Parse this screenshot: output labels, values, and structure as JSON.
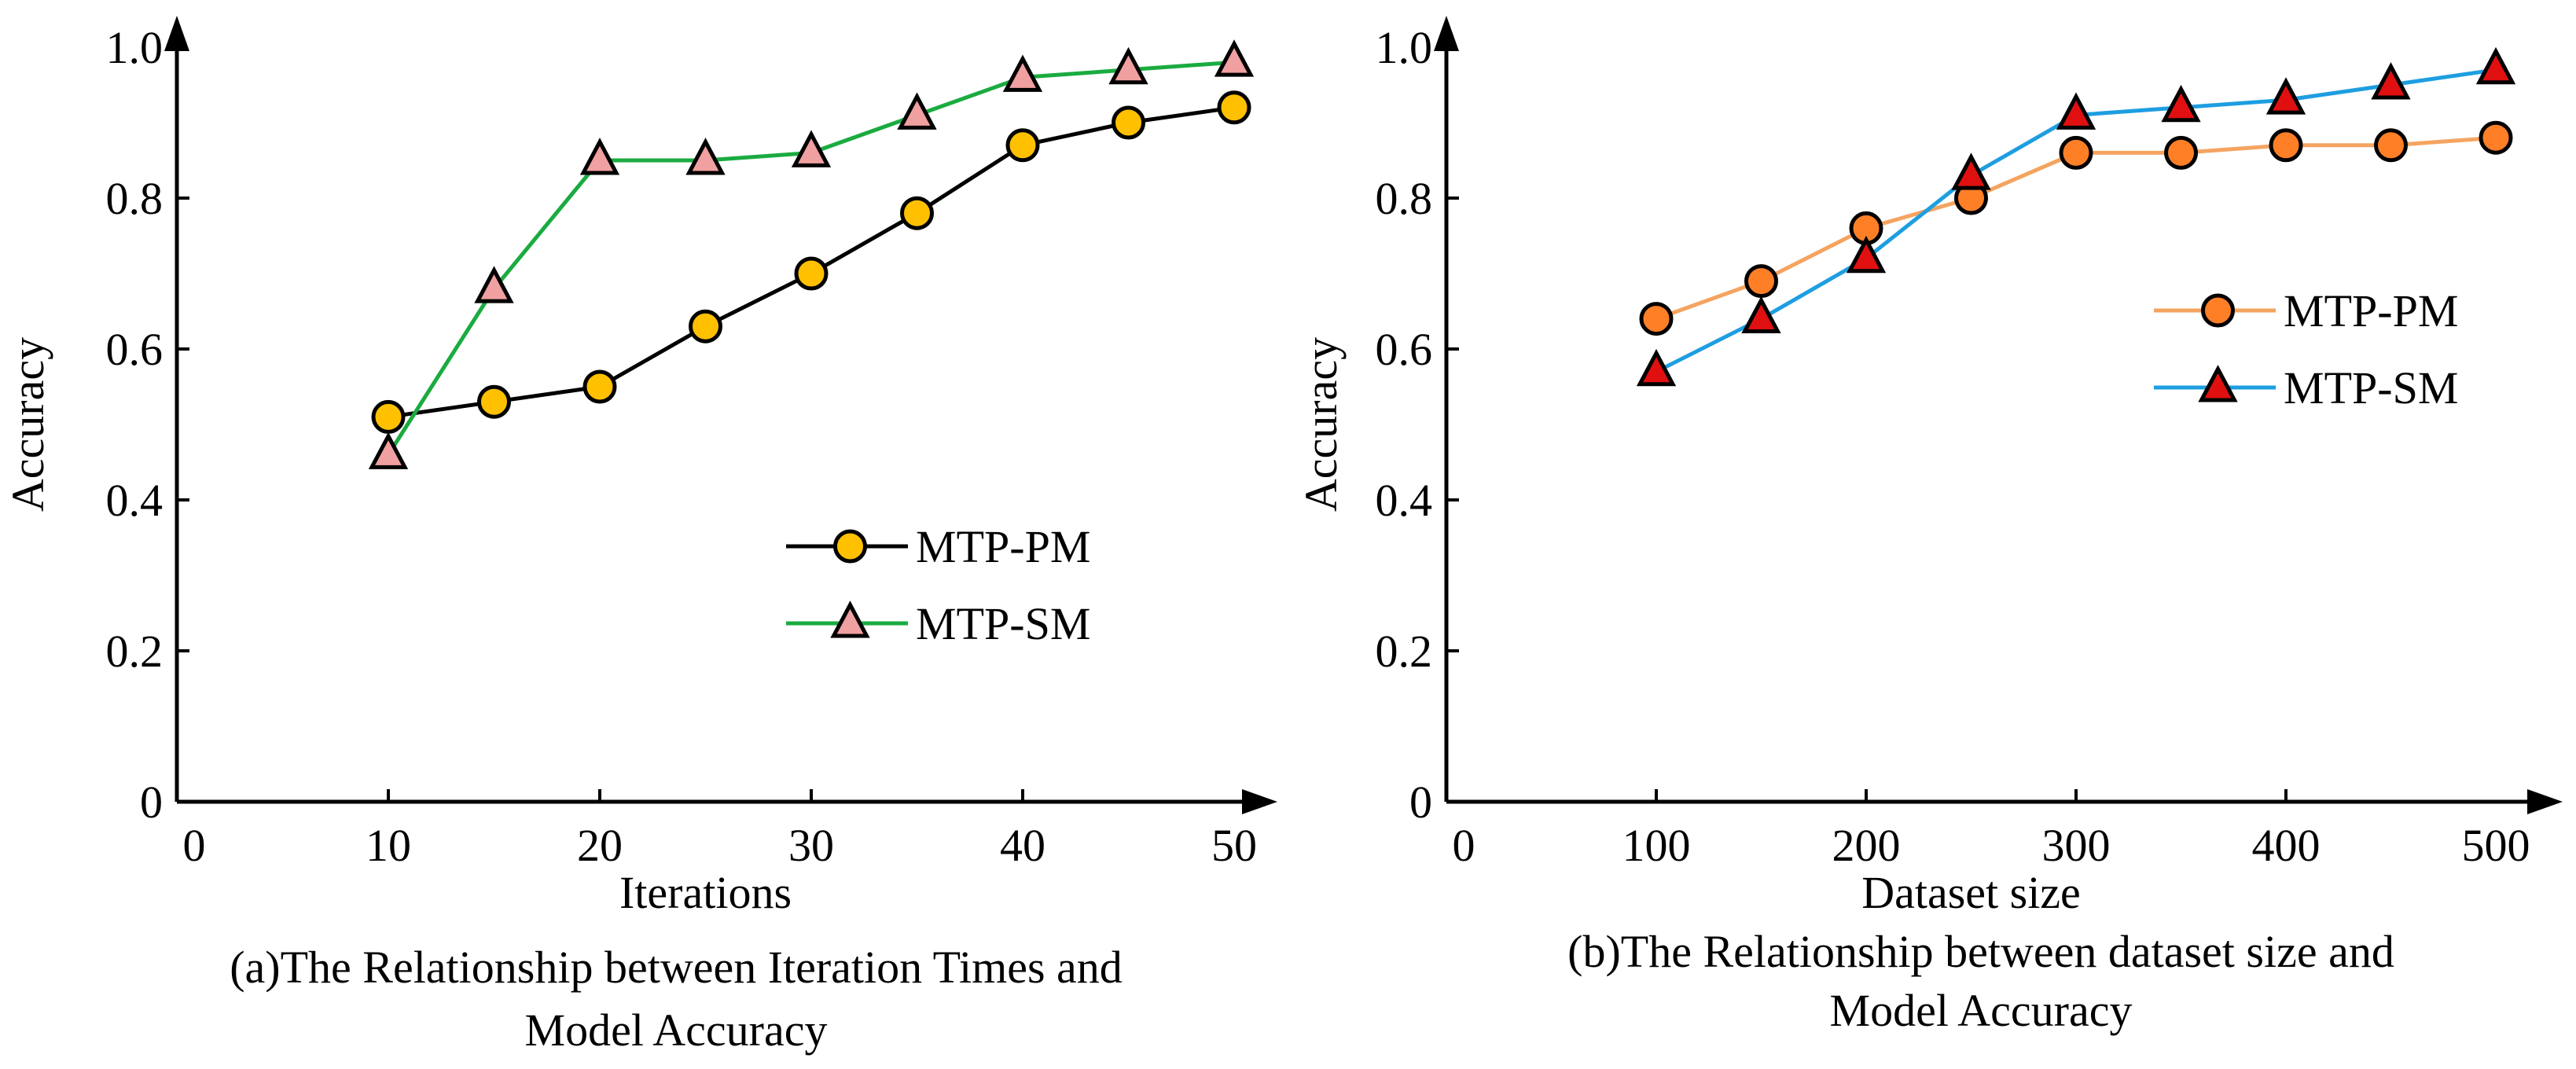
{
  "chart_data": [
    {
      "type": "line",
      "xlabel": "Iterations",
      "ylabel": "Accuracy",
      "xlim": [
        0,
        50
      ],
      "ylim": [
        0,
        1.0
      ],
      "xticks": [
        "0",
        "10",
        "20",
        "30",
        "40",
        "50"
      ],
      "yticks": [
        "0",
        "0.2",
        "0.4",
        "0.6",
        "0.8",
        "1.0"
      ],
      "caption_lines": [
        "(a)The Relationship between Iteration Times and",
        "Model Accuracy"
      ],
      "legend_position": "center-right",
      "series": [
        {
          "name": "MTP-PM",
          "color": "#000000",
          "marker": "circle",
          "marker_fill": "#FFC000",
          "x": [
            10,
            15,
            20,
            25,
            30,
            35,
            40,
            45,
            50
          ],
          "y": [
            0.51,
            0.53,
            0.55,
            0.63,
            0.7,
            0.78,
            0.87,
            0.9,
            0.92
          ]
        },
        {
          "name": "MTP-SM",
          "color": "#1AAB40",
          "marker": "triangle",
          "marker_fill": "#F0A0A0",
          "x": [
            10,
            15,
            20,
            25,
            30,
            35,
            40,
            45,
            50
          ],
          "y": [
            0.46,
            0.68,
            0.85,
            0.85,
            0.86,
            0.91,
            0.96,
            0.97,
            0.98
          ]
        }
      ]
    },
    {
      "type": "line",
      "xlabel": "Dataset size",
      "ylabel": "Accuracy",
      "xlim": [
        0,
        500
      ],
      "ylim": [
        0,
        1.0
      ],
      "xticks": [
        "0",
        "100",
        "200",
        "300",
        "400",
        "500"
      ],
      "yticks": [
        "0",
        "0.2",
        "0.4",
        "0.6",
        "0.8",
        "1.0"
      ],
      "caption_lines": [
        "(b)The Relationship between dataset size and",
        "Model Accuracy"
      ],
      "legend_position": "top-right",
      "series": [
        {
          "name": "MTP-PM",
          "color": "#F4A460",
          "marker": "circle",
          "marker_fill": "#FF7F27",
          "x": [
            100,
            150,
            200,
            250,
            300,
            350,
            400,
            450,
            500
          ],
          "y": [
            0.64,
            0.69,
            0.76,
            0.8,
            0.86,
            0.86,
            0.87,
            0.87,
            0.88
          ]
        },
        {
          "name": "MTP-SM",
          "color": "#1E9EE0",
          "marker": "triangle",
          "marker_fill": "#E01010",
          "x": [
            100,
            150,
            200,
            250,
            300,
            350,
            400,
            450,
            500
          ],
          "y": [
            0.57,
            0.64,
            0.72,
            0.83,
            0.91,
            0.92,
            0.93,
            0.95,
            0.97
          ]
        }
      ]
    }
  ]
}
